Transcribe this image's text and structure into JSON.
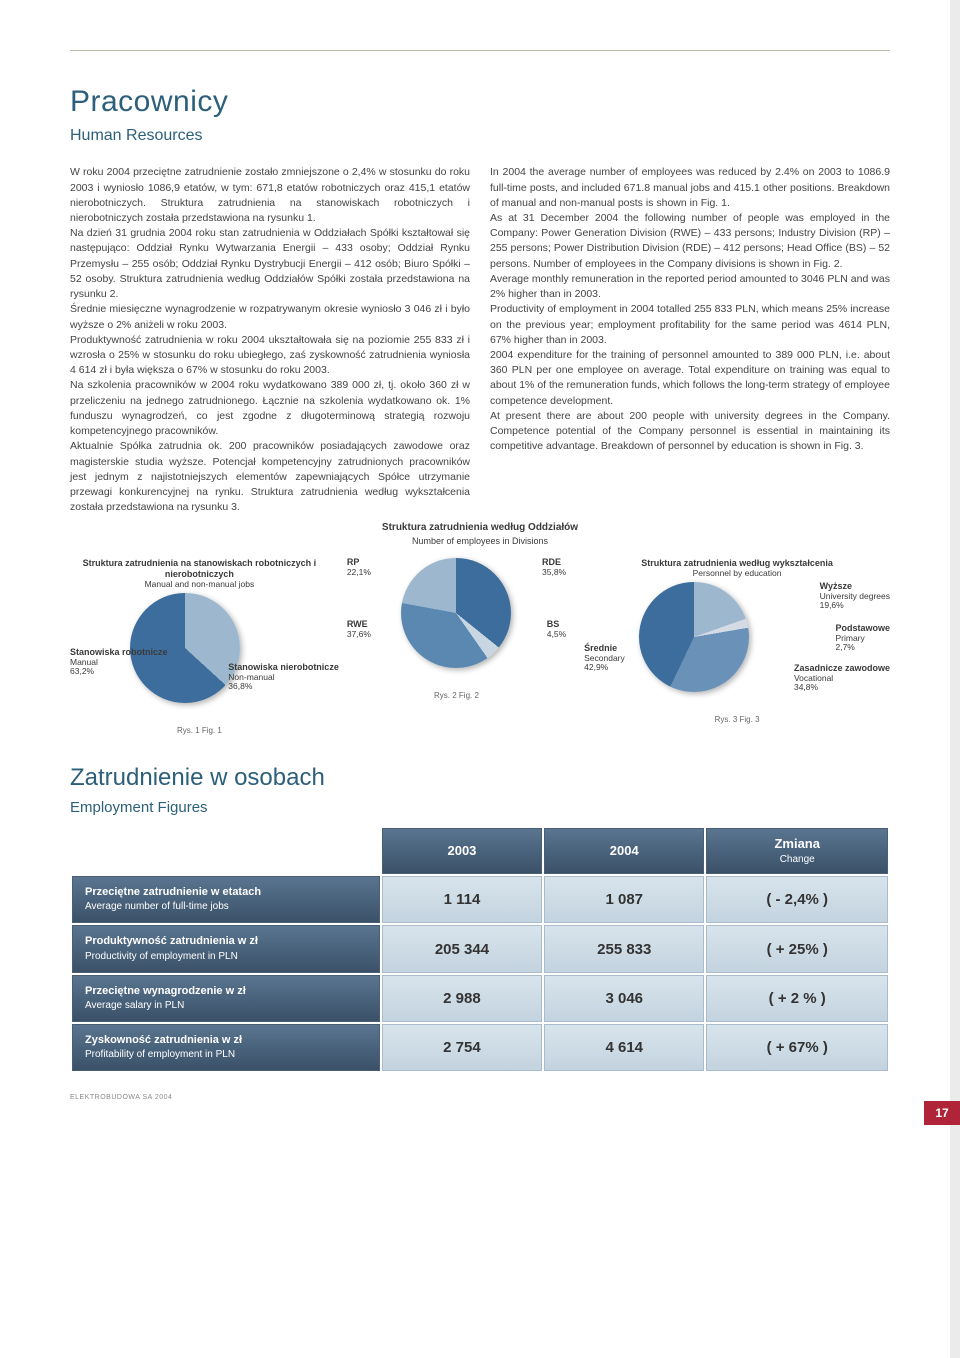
{
  "header": {
    "title": "Pracownicy",
    "subtitle": "Human Resources"
  },
  "body": {
    "left": "W roku 2004 przeciętne zatrudnienie zostało zmniejszone o 2,4% w stosunku do roku 2003 i wyniosło 1086,9 etatów, w tym: 671,8 etatów robotniczych oraz 415,1 etatów nierobotniczych. Struktura zatrudnienia na stanowiskach robotniczych i nierobotniczych została przedstawiona na rysunku 1.\nNa dzień 31 grudnia 2004 roku stan zatrudnienia w Oddziałach Spółki kształtował się następująco: Oddział Rynku Wytwarzania Energii – 433 osoby; Oddział Rynku Przemysłu – 255 osób; Oddział Rynku Dystrybucji Energii – 412 osób; Biuro Spółki – 52 osoby. Struktura zatrudnienia według Oddziałów Spółki została przedstawiona na rysunku 2.\nŚrednie miesięczne wynagrodzenie w rozpatrywanym okresie wyniosło 3 046 zł i było wyższe o 2% aniżeli w roku 2003.\nProduktywność zatrudnienia w roku 2004 ukształtowała się na poziomie 255 833 zł i wzrosła o 25% w stosunku do roku ubiegłego, zaś zyskowność zatrudnienia wyniosła 4 614 zł i była większa o 67% w stosunku do roku 2003.\nNa szkolenia pracowników w 2004 roku wydatkowano 389 000 zł, tj. około 360 zł w przeliczeniu na jednego zatrudnionego. Łącznie na szkolenia wydatkowano ok. 1% funduszu wynagrodzeń, co jest zgodne z długoterminową strategią rozwoju kompetencyjnego pracowników.\nAktualnie Spółka zatrudnia ok. 200 pracowników posiadających zawodowe oraz magisterskie studia wyższe. Potencjał kompetencyjny zatrudnionych pracowników jest jednym z najistotniejszych elementów zapewniających Spółce utrzymanie przewagi konkurencyjnej na rynku. Struktura zatrudnienia według wykształcenia została przedstawiona na rysunku 3.",
    "right": "In 2004 the average number of employees was reduced by 2.4% on 2003 to 1086.9 full-time posts, and included 671.8 manual jobs and 415.1 other positions. Breakdown of manual and non-manual posts is shown in Fig. 1.\nAs at 31 December 2004 the following number of people was employed in the Company: Power Generation Division (RWE) – 433 persons; Industry Division (RP) – 255 persons; Power Distribution Division (RDE) – 412 persons; Head Office (BS) – 52 persons. Number of employees in the Company divisions is shown in Fig. 2.\nAverage monthly remuneration in the reported period amounted to 3046 PLN and was 2% higher than in 2003.\nProductivity of employment in 2004 totalled 255 833 PLN, which means 25% increase on the previous year; employment profitability for the same period was 4614 PLN, 67% higher than in 2003.\n2004 expenditure for the training of personnel amounted to 389 000 PLN, i.e. about 360 PLN per one employee on average. Total expenditure on training was equal to about 1% of the remuneration funds, which follows the long-term strategy of employee competence development.\nAt present there are about 200 people with university degrees in the Company. Competence potential of the Company personnel is essential in maintaining its competitive advantage. Breakdown of personnel by education is shown in Fig. 3."
  },
  "charts": {
    "center_title": "Struktura zatrudnienia według Oddziałów",
    "center_sub": "Number of employees in Divisions",
    "chart1": {
      "title": "Struktura zatrudnienia na stanowiskach robotniczych i nierobotniczych",
      "sub": "Manual and non-manual jobs",
      "seg1_name": "Stanowiska robotnicze",
      "seg1_sub": "Manual",
      "seg1_val": "63,2%",
      "seg2_name": "Stanowiska nierobotnicze",
      "seg2_sub": "Non-manual",
      "seg2_val": "36,8%",
      "colors": {
        "manual": "#3c6d9c",
        "nonmanual": "#9db8ce"
      },
      "caption": "Rys. 1   Fig. 1"
    },
    "chart2": {
      "seg_rp": "RP",
      "seg_rp_val": "22,1%",
      "seg_rwe": "RWE",
      "seg_rwe_val": "37,6%",
      "seg_rde": "RDE",
      "seg_rde_val": "35,8%",
      "seg_bs": "BS",
      "seg_bs_val": "4,5%",
      "colors": {
        "rp": "#9db8ce",
        "rwe": "#5a88b0",
        "rde": "#3c6d9c",
        "bs": "#c8d6e2"
      },
      "caption": "Rys. 2   Fig. 2"
    },
    "chart3": {
      "title": "Struktura zatrudnienia według wykształcenia",
      "sub": "Personnel by education",
      "seg1_name": "Średnie",
      "seg1_sub": "Secondary",
      "seg1_val": "42,9%",
      "seg2_name": "Wyższe",
      "seg2_sub": "University degrees",
      "seg2_val": "19,6%",
      "seg3_name": "Podstawowe",
      "seg3_sub": "Primary",
      "seg3_val": "2,7%",
      "seg4_name": "Zasadnicze zawodowe",
      "seg4_sub": "Vocational",
      "seg4_val": "34,8%",
      "colors": {
        "secondary": "#3c6d9c",
        "university": "#9db8ce",
        "primary": "#d4dbe4",
        "vocational": "#6a92b8"
      },
      "caption": "Rys. 3   Fig. 3"
    }
  },
  "table": {
    "title": "Zatrudnienie w osobach",
    "subtitle": "Employment Figures",
    "col1": "2003",
    "col2": "2004",
    "col3": "Zmiana",
    "col3_sub": "Change",
    "rows": [
      {
        "h": "Przeciętne zatrudnienie w etatach",
        "hs": "Average number of full-time jobs",
        "c1": "1 114",
        "c2": "1 087",
        "c3": "( - 2,4% )"
      },
      {
        "h": "Produktywność zatrudnienia w zł",
        "hs": "Productivity of employment in PLN",
        "c1": "205 344",
        "c2": "255 833",
        "c3": "( + 25% )"
      },
      {
        "h": "Przeciętne wynagrodzenie w zł",
        "hs": "Average salary in PLN",
        "c1": "2 988",
        "c2": "3 046",
        "c3": "( + 2 % )"
      },
      {
        "h": "Zyskowność zatrudnienia w zł",
        "hs": "Profitability of employment in PLN",
        "c1": "2 754",
        "c2": "4 614",
        "c3": "( + 67% )"
      }
    ]
  },
  "footer": {
    "text": "ELEKTROBUDOWA SA   2004",
    "pagenum": "17"
  }
}
